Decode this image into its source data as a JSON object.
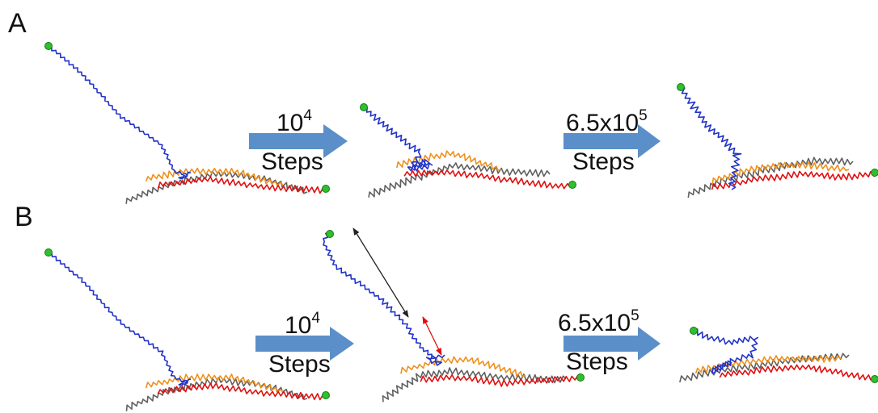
{
  "panels": [
    {
      "label": "A",
      "transitions": [
        {
          "base": "10",
          "exponent": "4",
          "caption": "Steps"
        },
        {
          "base": "6.5x10",
          "exponent": "5",
          "caption": "Steps"
        }
      ]
    },
    {
      "label": "B",
      "transitions": [
        {
          "base": "10",
          "exponent": "4",
          "caption": "Steps"
        },
        {
          "base": "6.5x10",
          "exponent": "5",
          "caption": "Steps"
        }
      ]
    }
  ]
}
